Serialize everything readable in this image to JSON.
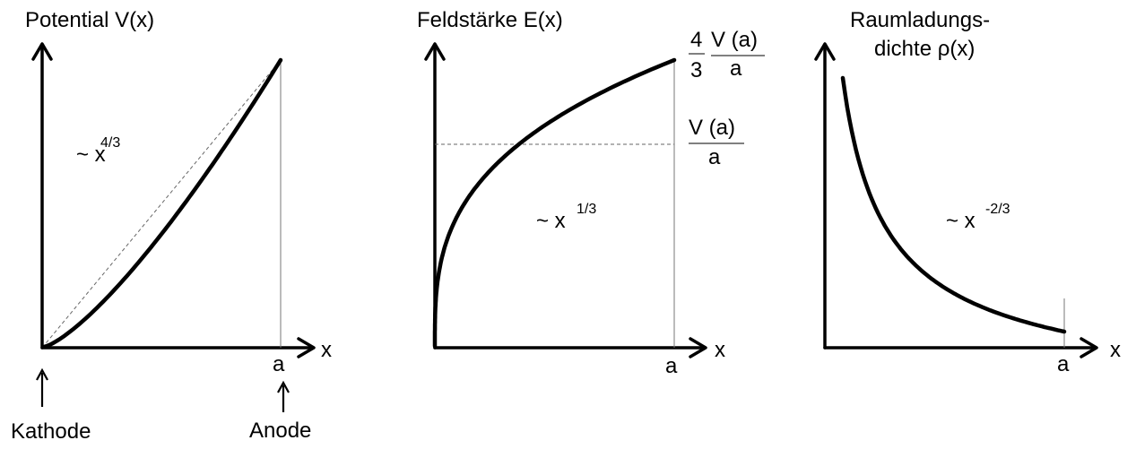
{
  "panel1": {
    "title": "Potential V(x)",
    "x_label": "x",
    "a_label": "a",
    "formula_base": "~ x",
    "formula_exp": "4/3",
    "cathode_label": "Kathode",
    "anode_label": "Anode"
  },
  "panel2": {
    "title": "Feldstärke E(x)",
    "x_label": "x",
    "a_label": "a",
    "formula_base": "~ x",
    "formula_exp": "1/3",
    "top_frac_num": "4",
    "top_frac_den": "3",
    "top_ratio_num": "V (a)",
    "top_ratio_den": "a",
    "mid_ratio_num": "V (a)",
    "mid_ratio_den": "a"
  },
  "panel3": {
    "title_line1": "Raumladungs-",
    "title_line2": "dichte ρ(x)",
    "x_label": "x",
    "a_label": "a",
    "formula_base": "~ x",
    "formula_exp": "-2/3"
  }
}
